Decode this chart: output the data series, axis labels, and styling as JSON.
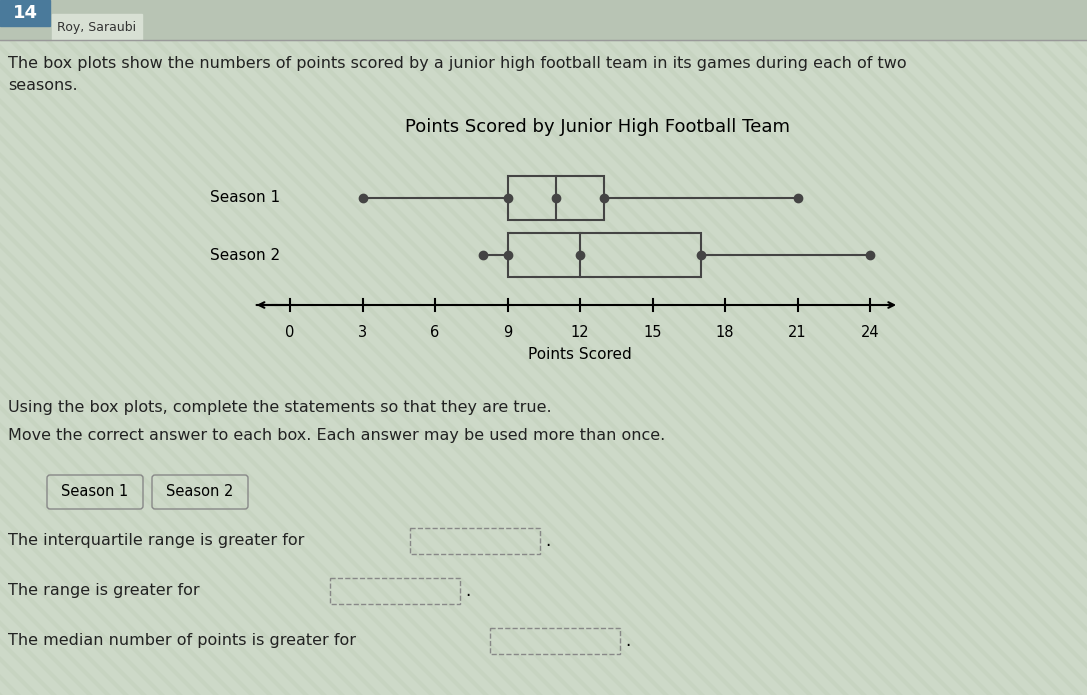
{
  "title": "Points Scored by Junior High Football Team",
  "xlabel": "Points Scored",
  "season1": {
    "label": "Season 1",
    "min": 3,
    "q1": 9,
    "median": 11,
    "q3": 13,
    "max": 21
  },
  "season2": {
    "label": "Season 2",
    "min": 8,
    "q1": 9,
    "median": 12,
    "q3": 17,
    "max": 24
  },
  "axis_ticks": [
    0,
    3,
    6,
    9,
    12,
    15,
    18,
    21,
    24
  ],
  "axis_data_min": -1,
  "axis_data_max": 25.5,
  "bg_color": "#cdd9c8",
  "stripe_color": "#c2d0bc",
  "header_bg": "#b8c4b4",
  "badge_color": "#4a7a9b",
  "text_color": "#222222",
  "box_color": "#444444",
  "statement_texts": [
    "The interquartile range is greater for",
    "The range is greater for",
    "The median number of points is greater for"
  ],
  "answer_chip_texts": [
    "Season 1",
    "Season 2"
  ],
  "top_number": "14",
  "top_label": "Roy, Saraubi",
  "intro_text1": "The box plots show the numbers of points scored by a junior high football team in its games during each of two",
  "intro_text2": "seasons.",
  "instruction_text1": "Using the box plots, complete the statements so that they are true.",
  "instruction_text2": "Move the correct answer to each box. Each answer may be used more than once."
}
